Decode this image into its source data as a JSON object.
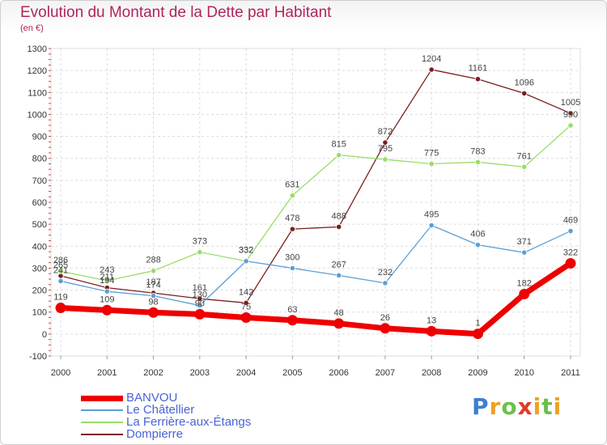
{
  "header": {
    "title": "Evolution du Montant de la Dette par Habitant",
    "unit": "(en €)"
  },
  "brand": {
    "text": "Proxiti"
  },
  "chart_data": {
    "type": "line",
    "title": "Evolution du Montant de la Dette par Habitant",
    "ylabel": "(en €)",
    "xlabel": "",
    "x": [
      2000,
      2001,
      2002,
      2003,
      2004,
      2005,
      2006,
      2007,
      2008,
      2009,
      2010,
      2011
    ],
    "ylim": [
      -100,
      1300
    ],
    "yticks": [
      -100,
      0,
      100,
      200,
      300,
      400,
      500,
      600,
      700,
      800,
      900,
      1000,
      1100,
      1200,
      1300
    ],
    "grid": true,
    "legend_position": "bottom-left",
    "series": [
      {
        "name": "BANVOU",
        "color": "#ee0000",
        "values": [
          119,
          109,
          98,
          90,
          75,
          63,
          48,
          26,
          13,
          1,
          182,
          322
        ]
      },
      {
        "name": "Le Châtellier",
        "color": "#5b9fd6",
        "values": [
          241,
          194,
          174,
          130,
          332,
          300,
          267,
          232,
          495,
          406,
          371,
          469
        ]
      },
      {
        "name": "La Ferrière-aux-Étangs",
        "color": "#99dd66",
        "values": [
          286,
          243,
          288,
          373,
          332,
          631,
          815,
          795,
          775,
          783,
          761,
          950
        ]
      },
      {
        "name": "Dompierre",
        "color": "#7a1f1f",
        "values": [
          265,
          211,
          187,
          161,
          142,
          478,
          488,
          872,
          1204,
          1161,
          1096,
          1005
        ]
      }
    ]
  }
}
